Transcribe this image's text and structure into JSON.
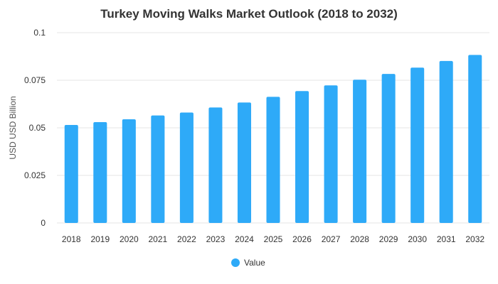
{
  "chart_data": {
    "type": "bar",
    "title": "Turkey Moving Walks Market Outlook (2018 to 2032)",
    "xlabel": "",
    "ylabel": "USD USD Billion",
    "categories": [
      "2018",
      "2019",
      "2020",
      "2021",
      "2022",
      "2023",
      "2024",
      "2025",
      "2026",
      "2027",
      "2028",
      "2029",
      "2030",
      "2031",
      "2032"
    ],
    "series": [
      {
        "name": "Value",
        "color": "#2eaaf8",
        "values": [
          0.0515,
          0.053,
          0.0545,
          0.0565,
          0.058,
          0.0607,
          0.0633,
          0.0663,
          0.0693,
          0.0723,
          0.0753,
          0.0783,
          0.0816,
          0.0851,
          0.0883
        ]
      }
    ],
    "ylim": [
      0,
      0.1
    ],
    "yticks": [
      0,
      0.025,
      0.05,
      0.075,
      0.1
    ],
    "ytick_labels": [
      "0",
      "0.025",
      "0.05",
      "0.075",
      "0.1"
    ],
    "grid": true,
    "legend_position": "bottom-center"
  }
}
